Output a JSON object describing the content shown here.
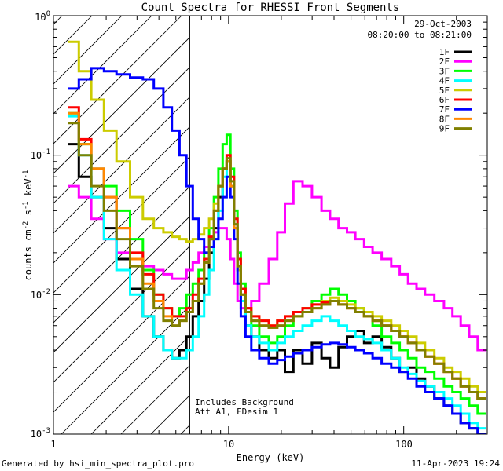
{
  "chart_data": {
    "type": "line",
    "title": "Count Spectra for RHESSI Front Segments",
    "xlabel": "Energy (keV)",
    "ylabel_parts": [
      "counts cm",
      "-2",
      " s",
      "-1",
      " keV",
      "-1"
    ],
    "x_scale": "log",
    "y_scale": "log",
    "xlim": [
      1,
      300
    ],
    "ylim": [
      0.001,
      1.0
    ],
    "x_major_ticks": [
      1,
      10,
      100
    ],
    "x_tick_labels": [
      "1",
      "10",
      "100"
    ],
    "y_major_ticks": [
      0.001,
      0.01,
      0.1,
      1.0
    ],
    "y_tick_labels": [
      {
        "base": "10",
        "exp": "-3"
      },
      {
        "base": "10",
        "exp": "-2"
      },
      {
        "base": "10",
        "exp": "-1"
      },
      {
        "base": "10",
        "exp": "0"
      }
    ],
    "date": "29-Oct-2003",
    "time_range": "08:20:00 to 08:21:00",
    "annotations": [
      "Includes Background",
      "Att A1, FDesim 1"
    ],
    "hatched_region_keV": [
      1,
      6
    ],
    "legend_position": "top-right",
    "energies": [
      1.3,
      1.5,
      1.8,
      2.1,
      2.5,
      3.0,
      3.5,
      4.0,
      4.5,
      5.0,
      5.5,
      6.0,
      6.5,
      7.0,
      7.5,
      8.0,
      8.5,
      9.0,
      9.5,
      10.0,
      10.5,
      11.0,
      11.5,
      12.0,
      13.0,
      14.0,
      16.0,
      18.0,
      20.0,
      22.0,
      25.0,
      28.0,
      32.0,
      36.0,
      40.0,
      45.0,
      50.0,
      56.0,
      63.0,
      70.0,
      80.0,
      90.0,
      100.0,
      112.0,
      125.0,
      140.0,
      160.0,
      180.0,
      200.0,
      224.0,
      250.0,
      280.0
    ],
    "series": [
      {
        "name": "1F",
        "color": "#000000",
        "values": [
          0.12,
          0.07,
          0.05,
          0.03,
          0.018,
          0.011,
          0.007,
          0.005,
          0.004,
          0.0035,
          0.004,
          0.005,
          0.007,
          0.009,
          0.013,
          0.02,
          0.03,
          0.05,
          0.08,
          0.09,
          0.06,
          0.03,
          0.015,
          0.009,
          0.006,
          0.005,
          0.004,
          0.0035,
          0.004,
          0.0028,
          0.004,
          0.0032,
          0.0045,
          0.0035,
          0.003,
          0.0042,
          0.005,
          0.0055,
          0.0045,
          0.005,
          0.0042,
          0.0035,
          0.0028,
          0.003,
          0.0025,
          0.0022,
          0.0018,
          0.0016,
          0.0014,
          0.0012,
          0.0011,
          0.001
        ]
      },
      {
        "name": "2F",
        "color": "#ff00ff",
        "values": [
          0.06,
          0.05,
          0.035,
          0.025,
          0.02,
          0.018,
          0.016,
          0.015,
          0.014,
          0.013,
          0.013,
          0.015,
          0.017,
          0.02,
          0.022,
          0.025,
          0.028,
          0.03,
          0.03,
          0.025,
          0.018,
          0.012,
          0.009,
          0.008,
          0.008,
          0.009,
          0.012,
          0.018,
          0.028,
          0.045,
          0.065,
          0.06,
          0.05,
          0.04,
          0.035,
          0.03,
          0.028,
          0.025,
          0.022,
          0.02,
          0.018,
          0.016,
          0.014,
          0.012,
          0.011,
          0.01,
          0.009,
          0.008,
          0.007,
          0.006,
          0.005,
          0.004
        ]
      },
      {
        "name": "3F",
        "color": "#00ff00",
        "values": [
          0.2,
          0.12,
          0.08,
          0.06,
          0.04,
          0.025,
          0.015,
          0.01,
          0.008,
          0.007,
          0.008,
          0.01,
          0.012,
          0.015,
          0.02,
          0.03,
          0.05,
          0.08,
          0.12,
          0.14,
          0.08,
          0.04,
          0.02,
          0.012,
          0.008,
          0.006,
          0.005,
          0.0045,
          0.005,
          0.006,
          0.007,
          0.008,
          0.009,
          0.01,
          0.011,
          0.01,
          0.009,
          0.008,
          0.007,
          0.006,
          0.005,
          0.0045,
          0.004,
          0.0035,
          0.003,
          0.0028,
          0.0025,
          0.0022,
          0.002,
          0.0018,
          0.0016,
          0.0014
        ]
      },
      {
        "name": "4F",
        "color": "#00ffff",
        "values": [
          0.19,
          0.1,
          0.05,
          0.025,
          0.015,
          0.01,
          0.007,
          0.005,
          0.004,
          0.0035,
          0.0035,
          0.004,
          0.005,
          0.007,
          0.01,
          0.015,
          0.025,
          0.04,
          0.07,
          0.09,
          0.06,
          0.03,
          0.015,
          0.009,
          0.006,
          0.005,
          0.0045,
          0.004,
          0.0045,
          0.005,
          0.0055,
          0.006,
          0.0065,
          0.007,
          0.0065,
          0.006,
          0.0055,
          0.005,
          0.0048,
          0.0045,
          0.004,
          0.0035,
          0.003,
          0.0027,
          0.0024,
          0.0022,
          0.002,
          0.0018,
          0.0016,
          0.0014,
          0.0012,
          0.0011
        ]
      },
      {
        "name": "5F",
        "color": "#cccc00",
        "values": [
          0.65,
          0.4,
          0.25,
          0.15,
          0.09,
          0.05,
          0.035,
          0.03,
          0.028,
          0.026,
          0.025,
          0.024,
          0.025,
          0.027,
          0.03,
          0.035,
          0.045,
          0.06,
          0.08,
          0.09,
          0.06,
          0.03,
          0.015,
          0.01,
          0.008,
          0.007,
          0.0065,
          0.006,
          0.0065,
          0.007,
          0.0075,
          0.008,
          0.0085,
          0.009,
          0.0095,
          0.009,
          0.0085,
          0.008,
          0.0075,
          0.007,
          0.0065,
          0.006,
          0.0055,
          0.005,
          0.0045,
          0.004,
          0.0035,
          0.003,
          0.0028,
          0.0025,
          0.0022,
          0.002
        ]
      },
      {
        "name": "6F",
        "color": "#ff0000",
        "values": [
          0.22,
          0.13,
          0.08,
          0.05,
          0.03,
          0.02,
          0.014,
          0.01,
          0.008,
          0.007,
          0.007,
          0.008,
          0.01,
          0.013,
          0.018,
          0.026,
          0.04,
          0.06,
          0.08,
          0.1,
          0.07,
          0.035,
          0.018,
          0.011,
          0.008,
          0.007,
          0.0065,
          0.006,
          0.0065,
          0.007,
          0.0075,
          0.008,
          0.0085,
          0.0088,
          0.009,
          0.0085,
          0.008,
          0.0075,
          0.007,
          0.0065,
          0.006,
          0.0055,
          0.005,
          0.0045,
          0.004,
          0.0036,
          0.0032,
          0.0028,
          0.0025,
          0.0022,
          0.002,
          0.0018
        ]
      },
      {
        "name": "7F",
        "color": "#0000ff",
        "values": [
          0.3,
          0.35,
          0.42,
          0.4,
          0.38,
          0.36,
          0.35,
          0.3,
          0.22,
          0.15,
          0.1,
          0.06,
          0.035,
          0.025,
          0.02,
          0.022,
          0.025,
          0.035,
          0.05,
          0.07,
          0.05,
          0.025,
          0.012,
          0.007,
          0.005,
          0.004,
          0.0035,
          0.0032,
          0.0034,
          0.0036,
          0.0038,
          0.004,
          0.0042,
          0.0044,
          0.0045,
          0.0044,
          0.0042,
          0.004,
          0.0038,
          0.0035,
          0.0032,
          0.003,
          0.0028,
          0.0025,
          0.0022,
          0.002,
          0.0018,
          0.0016,
          0.0014,
          0.0012,
          0.0011,
          0.001
        ]
      },
      {
        "name": "8F",
        "color": "#ff8800",
        "values": [
          0.2,
          0.12,
          0.08,
          0.05,
          0.03,
          0.018,
          0.012,
          0.009,
          0.007,
          0.006,
          0.0065,
          0.0075,
          0.009,
          0.012,
          0.017,
          0.025,
          0.04,
          0.06,
          0.08,
          0.09,
          0.06,
          0.03,
          0.016,
          0.01,
          0.0075,
          0.0065,
          0.006,
          0.0058,
          0.006,
          0.0065,
          0.007,
          0.0075,
          0.008,
          0.0085,
          0.009,
          0.0085,
          0.008,
          0.0075,
          0.007,
          0.0065,
          0.006,
          0.0055,
          0.005,
          0.0045,
          0.004,
          0.0036,
          0.0032,
          0.0028,
          0.0025,
          0.0022,
          0.002,
          0.0018
        ]
      },
      {
        "name": "9F",
        "color": "#808000",
        "values": [
          0.17,
          0.1,
          0.06,
          0.04,
          0.025,
          0.016,
          0.011,
          0.008,
          0.0065,
          0.006,
          0.0065,
          0.0075,
          0.009,
          0.012,
          0.017,
          0.025,
          0.04,
          0.06,
          0.08,
          0.095,
          0.065,
          0.032,
          0.016,
          0.01,
          0.0075,
          0.0065,
          0.006,
          0.0058,
          0.006,
          0.0065,
          0.007,
          0.0075,
          0.008,
          0.0085,
          0.009,
          0.0085,
          0.008,
          0.0075,
          0.007,
          0.0065,
          0.006,
          0.0055,
          0.005,
          0.0045,
          0.004,
          0.0036,
          0.0032,
          0.0028,
          0.0025,
          0.0022,
          0.002,
          0.0018
        ]
      }
    ]
  },
  "footer": {
    "generated_by": "Generated by hsi_min_spectra_plot.pro",
    "timestamp": "11-Apr-2023 19:24"
  }
}
